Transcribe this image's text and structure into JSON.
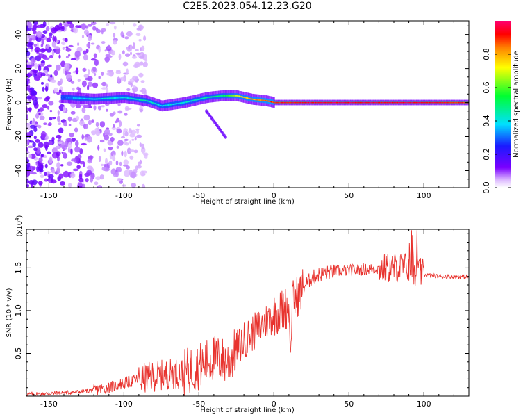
{
  "page": {
    "title": "C2E5.2023.054.12.23.G20"
  },
  "colors": {
    "snr_line": "#e8332e",
    "axis": "#000000",
    "background": "#ffffff"
  },
  "chart_data": [
    {
      "type": "heatmap",
      "title": "C2E5.2023.054.12.23.G20",
      "xlabel": "Height of straight line (km)",
      "ylabel": "Frequency (Hz)",
      "xlim": [
        -165,
        130
      ],
      "ylim": [
        -50,
        48
      ],
      "xticks": [
        -150,
        -100,
        -50,
        0,
        50,
        100
      ],
      "yticks": [
        -40,
        -20,
        0,
        20,
        40
      ],
      "colorbar": {
        "label": "Normalized spectral amplitude",
        "range": [
          0,
          1
        ],
        "ticks": [
          "0.0",
          "0.2",
          "0.4",
          "0.6",
          "0.8"
        ],
        "colormap": "rainbow (white-violet-blue-cyan-green-yellow-red-magenta)"
      },
      "ridge": {
        "description_points_x": [
          -140,
          -120,
          -100,
          -85,
          -75,
          -60,
          -45,
          -35,
          -25,
          -15,
          -5,
          0,
          20,
          50,
          90,
          130
        ],
        "frequency_hz": [
          3,
          2,
          3,
          1,
          -2,
          0,
          3,
          4,
          4,
          2,
          1,
          0,
          0,
          0,
          0,
          0
        ],
        "peak_amplitude": [
          0.3,
          0.4,
          0.4,
          0.45,
          0.4,
          0.4,
          0.45,
          0.5,
          0.7,
          0.8,
          0.85,
          0.9,
          0.95,
          0.95,
          0.95,
          0.9
        ]
      }
    },
    {
      "type": "line",
      "xlabel": "Height of straight line (km)",
      "ylabel": "SNR (10 * v/v)",
      "y_multiplier_label": "(x10",
      "y_multiplier_exp": "4",
      "y_multiplier_close": ")",
      "xlim": [
        -165,
        130
      ],
      "ylim": [
        0,
        19500
      ],
      "xticks": [
        -150,
        -100,
        -50,
        0,
        50,
        100
      ],
      "yticks": [
        5000,
        10000,
        15000
      ],
      "ytick_labels": [
        "0.5",
        "1.0",
        "1.5"
      ],
      "series": [
        {
          "x": [
            -165,
            -150,
            -140,
            -130,
            -120,
            -110,
            -100,
            -90,
            -80,
            -70,
            -60,
            -50,
            -40,
            -30,
            -25,
            -20,
            -10,
            0,
            10,
            15,
            20,
            25,
            30,
            40,
            50,
            60,
            70,
            80,
            90,
            95,
            100,
            110,
            120,
            130
          ],
          "y": [
            200,
            300,
            400,
            500,
            700,
            1000,
            1500,
            2000,
            2300,
            2600,
            2700,
            3500,
            4500,
            4000,
            5500,
            6500,
            8000,
            9500,
            10500,
            11500,
            12800,
            13800,
            14200,
            14600,
            14700,
            14800,
            14900,
            15000,
            15100,
            14600,
            14200,
            14000,
            14000,
            13900
          ]
        }
      ]
    }
  ]
}
